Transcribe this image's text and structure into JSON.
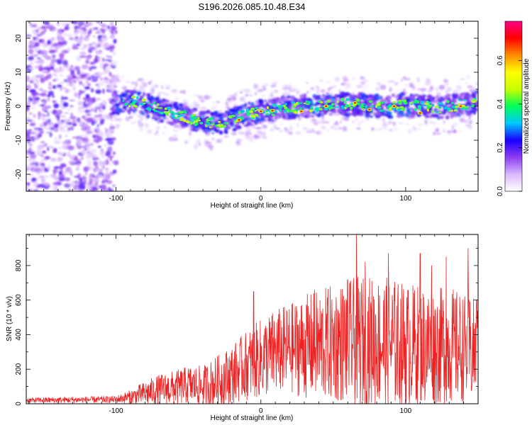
{
  "figure": {
    "title": "S196.2026.085.10.48.E34"
  },
  "chart_data": [
    {
      "type": "heatmap",
      "id": "spectrogram",
      "xlabel": "Height of straight line (km)",
      "ylabel": "Frequency (Hz)",
      "xlim": [
        -162,
        150
      ],
      "ylim": [
        -25,
        25
      ],
      "xticks_labeled": [
        -100,
        0,
        100
      ],
      "yticks_labeled": [
        -20,
        -10,
        0,
        10,
        20
      ],
      "colorbar": {
        "label": "Normalized spectral amplitude",
        "range": [
          0.0,
          0.78
        ],
        "ticks": [
          0.0,
          0.2,
          0.4,
          0.6
        ],
        "tick_labels": [
          "0.0",
          "0.2",
          "0.4",
          "0.6"
        ],
        "colors": [
          "#ffffff",
          "#d9b8ff",
          "#8e3cf0",
          "#1a00ff",
          "#00c8ff",
          "#00ff5a",
          "#c8ff00",
          "#ffff00",
          "#ff8c00",
          "#ff0000",
          "#ff0088"
        ]
      },
      "trace": {
        "description_points_x": [
          -100,
          -90,
          -80,
          -70,
          -60,
          -50,
          -40,
          -30,
          -20,
          -10,
          0,
          10,
          20,
          30,
          40,
          50,
          60,
          70,
          80,
          90,
          100,
          110,
          120,
          130,
          140,
          150
        ],
        "center_freq_hz": [
          1,
          1.5,
          0.5,
          -1,
          -2,
          -3.5,
          -4.5,
          -5,
          -4,
          -2.5,
          -1.5,
          -1,
          -0.5,
          0,
          0,
          1,
          0.5,
          0.5,
          0,
          0,
          0.5,
          0,
          -0.5,
          0,
          0.5,
          1.5
        ],
        "strong_points": [
          [
            -15,
            -4
          ],
          [
            0,
            -1.5
          ],
          [
            8,
            -1.3
          ],
          [
            28,
            -1.5
          ],
          [
            45,
            0
          ],
          [
            65,
            1
          ],
          [
            75,
            -1
          ],
          [
            92,
            0
          ],
          [
            110,
            -2
          ],
          [
            138,
            0
          ]
        ]
      },
      "noise_region_x": [
        -162,
        -100
      ]
    },
    {
      "type": "line",
      "id": "snr",
      "xlabel": "Height of straight line (km)",
      "ylabel": "SNR (10 * v/v)",
      "xlim": [
        -162,
        150
      ],
      "ylim": [
        0,
        980
      ],
      "xticks_labeled": [
        -100,
        0,
        100
      ],
      "yticks_labeled": [
        0,
        200,
        400,
        600,
        800
      ],
      "color": "#ee2222",
      "envelope": {
        "x": [
          -162,
          -100,
          -90,
          -80,
          -70,
          -60,
          -50,
          -40,
          -30,
          -20,
          -10,
          0,
          10,
          20,
          30,
          40,
          50,
          60,
          70,
          80,
          90,
          100,
          110,
          120,
          130,
          140,
          150
        ],
        "mean": [
          20,
          25,
          40,
          60,
          80,
          90,
          110,
          100,
          130,
          170,
          220,
          260,
          300,
          320,
          330,
          340,
          350,
          360,
          360,
          360,
          350,
          340,
          340,
          330,
          340,
          320,
          300
        ],
        "amplitude": [
          15,
          20,
          40,
          70,
          90,
          100,
          110,
          120,
          150,
          170,
          200,
          230,
          250,
          260,
          300,
          320,
          340,
          360,
          380,
          380,
          380,
          360,
          350,
          340,
          340,
          320,
          300
        ]
      },
      "peaks": [
        [
          -5,
          650
        ],
        [
          37,
          660
        ],
        [
          60,
          720
        ],
        [
          66,
          980
        ],
        [
          72,
          820
        ],
        [
          88,
          870
        ],
        [
          110,
          870
        ],
        [
          118,
          800
        ],
        [
          128,
          850
        ],
        [
          143,
          900
        ],
        [
          149,
          600
        ]
      ]
    }
  ]
}
